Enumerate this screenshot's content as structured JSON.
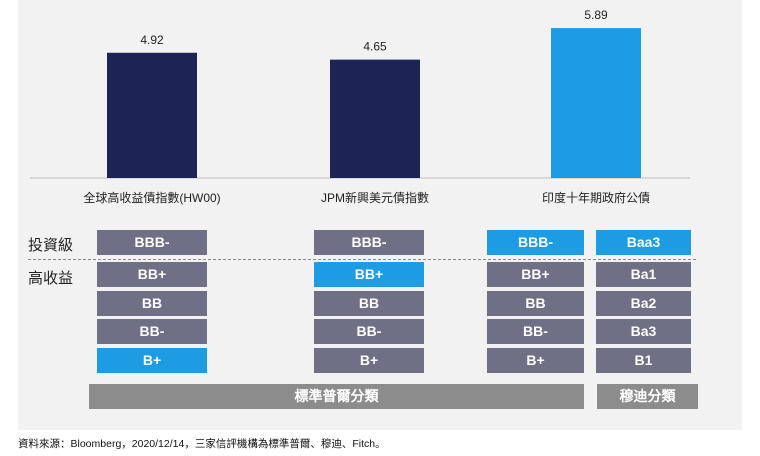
{
  "chart_data": {
    "type": "bar",
    "categories": [
      "全球高收益債指數(HW00)",
      "JPM新興美元債指數",
      "印度十年期政府公債"
    ],
    "values": [
      4.92,
      4.65,
      5.89
    ],
    "data_labels": [
      "4.92",
      "4.65",
      "5.89"
    ],
    "colors": [
      "#1b2455",
      "#1b2455",
      "#1d9be3"
    ],
    "ylim": [
      0,
      6.6
    ],
    "grid": false,
    "title": "",
    "xlabel": "",
    "ylabel": ""
  },
  "ratings": {
    "row_labels": {
      "investment_grade": "投資級",
      "high_yield": "高收益"
    },
    "columns": [
      {
        "items": [
          "BBB-",
          "BB+",
          "BB",
          "BB-",
          "B+"
        ],
        "highlight": 4
      },
      {
        "items": [
          "BBB-",
          "BB+",
          "BB",
          "BB-",
          "B+"
        ],
        "highlight": 1
      },
      {
        "items": [
          "BBB-",
          "BB+",
          "BB",
          "BB-",
          "B+"
        ],
        "highlight": 0
      },
      {
        "items": [
          "Baa3",
          "Ba1",
          "Ba2",
          "Ba3",
          "B1"
        ],
        "highlight": 0
      }
    ],
    "scale_sp": "標準普爾分類",
    "scale_moodys": "穆迪分類"
  },
  "footnote": "資料來源：Bloomberg，2020/12/14，三家信評機構為標準普爾、穆迪、Fitch。"
}
